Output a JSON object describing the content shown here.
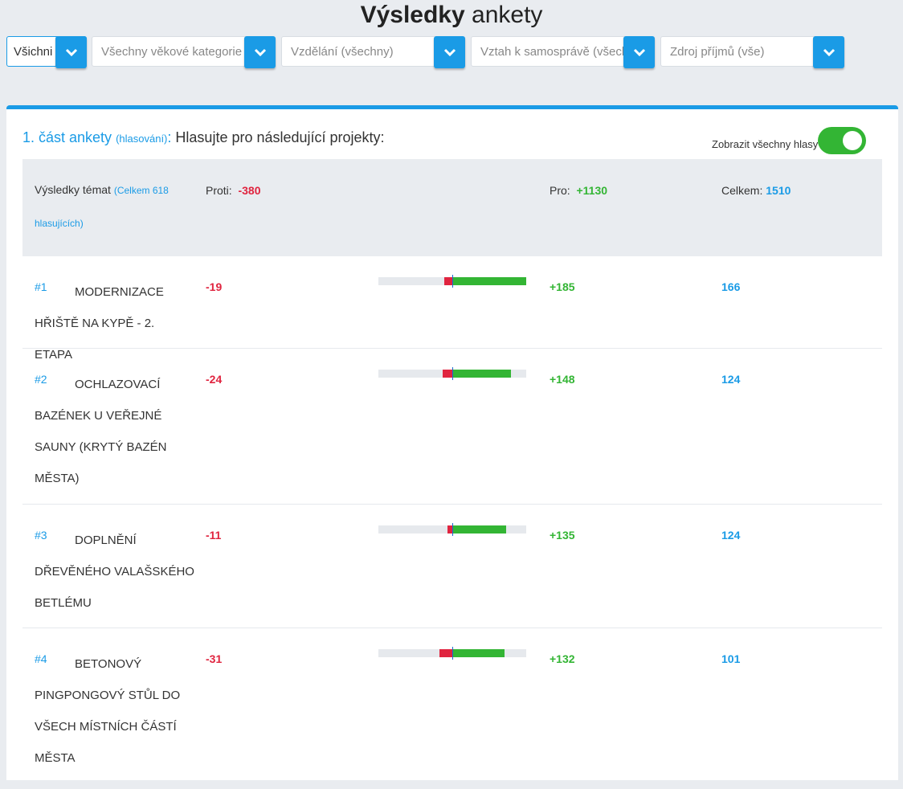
{
  "header": {
    "title_bold": "Výsledky",
    "title_rest": "ankety"
  },
  "filters": [
    {
      "label": "Všichni"
    },
    {
      "label": "Všechny věkové kategorie"
    },
    {
      "label": "Vzdělání (všechny)"
    },
    {
      "label": "Vztah k samosprávě (všechny)"
    },
    {
      "label": "Zdroj příjmů (vše)"
    }
  ],
  "section": {
    "part": "1. část ankety",
    "sub": "(hlasování)",
    "colon": ":",
    "prompt": "Hlasujte pro následující projekty:"
  },
  "toggle": {
    "label": "Zobrazit všechny hlasy",
    "on": true
  },
  "table_header": {
    "results_label": "Výsledky témat",
    "total_voters": "(Celkem 618 hlasujících)",
    "against_label": "Proti:",
    "against": "-380",
    "for_label": "Pro:",
    "for": "+1130",
    "total_label": "Celkem:",
    "total": "1510"
  },
  "items": [
    {
      "rank": "#1",
      "name": "MODERNIZACE HŘIŠTĚ NA KYPĚ - 2. ETAPA",
      "against": "-19",
      "for": "+185",
      "total": "166"
    },
    {
      "rank": "#2",
      "name": "OCHLAZOVACÍ BAZÉNEK U VEŘEJNÉ SAUNY (KRYTÝ BAZÉN MĚSTA)",
      "against": "-24",
      "for": "+148",
      "total": "124"
    },
    {
      "rank": "#3",
      "name": "DOPLNĚNÍ DŘEVĚNÉHO VALAŠSKÉHO BETLÉMU",
      "against": "-11",
      "for": "+135",
      "total": "124"
    },
    {
      "rank": "#4",
      "name": "BETONOVÝ PINGPONGOVÝ STŮL DO VŠECH MÍSTNÍCH ČÁSTÍ MĚSTA",
      "against": "-31",
      "for": "+132",
      "total": "101"
    }
  ],
  "colors": {
    "accent": "#1a9be6",
    "positive": "#33b534",
    "negative": "#e0243f"
  }
}
